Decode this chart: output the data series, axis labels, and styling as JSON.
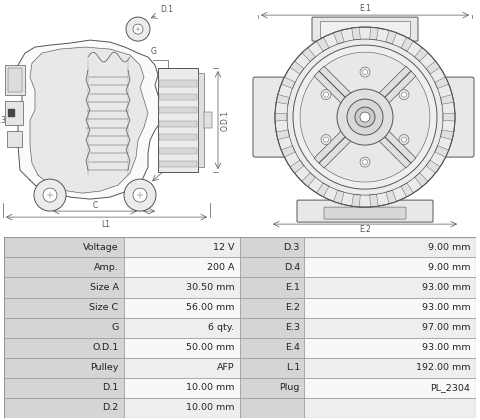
{
  "table_data": [
    [
      "Voltage",
      "12 V",
      "D.3",
      "9.00 mm"
    ],
    [
      "Amp.",
      "200 A",
      "D.4",
      "9.00 mm"
    ],
    [
      "Size A",
      "30.50 mm",
      "E.1",
      "93.00 mm"
    ],
    [
      "Size C",
      "56.00 mm",
      "E.2",
      "93.00 mm"
    ],
    [
      "G",
      "6 qty.",
      "E.3",
      "97.00 mm"
    ],
    [
      "O.D.1",
      "50.00 mm",
      "E.4",
      "93.00 mm"
    ],
    [
      "Pulley",
      "AFP",
      "L.1",
      "192.00 mm"
    ],
    [
      "D.1",
      "10.00 mm",
      "Plug",
      "PL_2304"
    ],
    [
      "D.2",
      "10.00 mm",
      "",
      ""
    ]
  ],
  "header_bg": "#d5d5d5",
  "row_bg_odd": "#eeeeee",
  "row_bg_even": "#f8f8f8",
  "border_color": "#999999",
  "text_color": "#222222",
  "fig_bg": "#ffffff",
  "line_color": "#555555",
  "fill_color": "#f0f0f0",
  "fill_light": "#fafafa"
}
